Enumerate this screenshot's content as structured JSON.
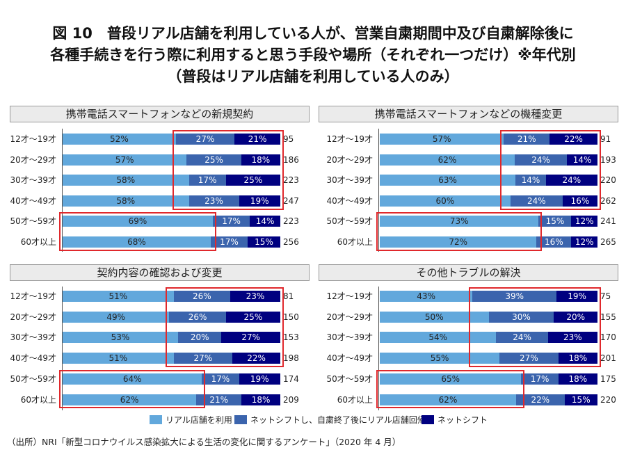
{
  "title": {
    "lines": [
      "図 10　普段リアル店舗を利用している人が、営業自粛期間中及び自粛解除後に",
      "各種手続きを行う際に利用すると思う手段や場所（それぞれ一つだけ）※年代別",
      "（普段はリアル店舗を利用している人のみ）"
    ]
  },
  "colors": {
    "real_store": "#62a8dc",
    "net_shift_return": "#3b64ad",
    "net_shift": "#000080",
    "highlight_box": "#e0282c",
    "header_bg": "#ebebeb"
  },
  "legend": [
    {
      "key": "real_store",
      "label": "リアル店舗を利用"
    },
    {
      "key": "net_shift_return",
      "label": "ネットシフトし、自粛終了後にリアル店舗回帰"
    },
    {
      "key": "net_shift",
      "label": "ネットシフト"
    }
  ],
  "source": "（出所）NRI「新型コロナウイルス感染拡大による生活の変化に関するアンケート」（2020 年 4 月）",
  "chart_data": [
    {
      "type": "bar",
      "orientation": "horizontal-stacked-100",
      "title": "携帯電話スマートフォンなどの新規契約",
      "categories": [
        "12才～19才",
        "20才～29才",
        "30才～39才",
        "40才～49才",
        "50才～59才",
        "60才以上"
      ],
      "series": [
        {
          "key": "real_store",
          "name": "リアル店舗を利用",
          "values": [
            52,
            57,
            58,
            58,
            69,
            68
          ]
        },
        {
          "key": "net_shift_return",
          "name": "ネットシフトし、自粛終了後にリアル店舗回帰",
          "values": [
            27,
            25,
            17,
            23,
            17,
            17
          ]
        },
        {
          "key": "net_shift",
          "name": "ネットシフト",
          "values": [
            21,
            18,
            25,
            19,
            14,
            15
          ]
        }
      ],
      "n": [
        95,
        186,
        223,
        247,
        223,
        256
      ],
      "unit": "%",
      "highlights": [
        {
          "rows": [
            0,
            3
          ],
          "series": [
            "net_shift_return",
            "net_shift"
          ]
        },
        {
          "rows": [
            4,
            5
          ],
          "series": [
            "real_store"
          ]
        }
      ]
    },
    {
      "type": "bar",
      "orientation": "horizontal-stacked-100",
      "title": "携帯電話スマートフォンなどの機種変更",
      "categories": [
        "12才～19才",
        "20才～29才",
        "30才～39才",
        "40才～49才",
        "50才～59才",
        "60才以上"
      ],
      "series": [
        {
          "key": "real_store",
          "name": "リアル店舗を利用",
          "values": [
            57,
            62,
            63,
            60,
            73,
            72
          ]
        },
        {
          "key": "net_shift_return",
          "name": "ネットシフトし、自粛終了後にリアル店舗回帰",
          "values": [
            21,
            24,
            14,
            24,
            15,
            16
          ]
        },
        {
          "key": "net_shift",
          "name": "ネットシフト",
          "values": [
            22,
            14,
            24,
            16,
            12,
            12
          ]
        }
      ],
      "n": [
        91,
        193,
        220,
        262,
        241,
        265
      ],
      "unit": "%",
      "highlights": [
        {
          "rows": [
            0,
            3
          ],
          "series": [
            "net_shift_return",
            "net_shift"
          ]
        },
        {
          "rows": [
            4,
            5
          ],
          "series": [
            "real_store"
          ]
        }
      ]
    },
    {
      "type": "bar",
      "orientation": "horizontal-stacked-100",
      "title": "契約内容の確認および変更",
      "categories": [
        "12才～19才",
        "20才～29才",
        "30才～39才",
        "40才～49才",
        "50才～59才",
        "60才以上"
      ],
      "series": [
        {
          "key": "real_store",
          "name": "リアル店舗を利用",
          "values": [
            51,
            49,
            53,
            51,
            64,
            62
          ]
        },
        {
          "key": "net_shift_return",
          "name": "ネットシフトし、自粛終了後にリアル店舗回帰",
          "values": [
            26,
            26,
            20,
            27,
            17,
            21
          ]
        },
        {
          "key": "net_shift",
          "name": "ネットシフト",
          "values": [
            23,
            25,
            27,
            22,
            19,
            18
          ]
        }
      ],
      "n": [
        81,
        150,
        153,
        198,
        174,
        209
      ],
      "unit": "%",
      "highlights": [
        {
          "rows": [
            0,
            3
          ],
          "series": [
            "net_shift_return",
            "net_shift"
          ]
        },
        {
          "rows": [
            4,
            5
          ],
          "series": [
            "real_store"
          ]
        }
      ]
    },
    {
      "type": "bar",
      "orientation": "horizontal-stacked-100",
      "title": "その他トラブルの解決",
      "categories": [
        "12才～19才",
        "20才～29才",
        "30才～39才",
        "40才～49才",
        "50才～59才",
        "60才以上"
      ],
      "series": [
        {
          "key": "real_store",
          "name": "リアル店舗を利用",
          "values": [
            43,
            50,
            54,
            55,
            65,
            62
          ]
        },
        {
          "key": "net_shift_return",
          "name": "ネットシフトし、自粛終了後にリアル店舗回帰",
          "values": [
            39,
            30,
            24,
            27,
            17,
            22
          ]
        },
        {
          "key": "net_shift",
          "name": "ネットシフト",
          "values": [
            19,
            20,
            23,
            18,
            18,
            15
          ]
        }
      ],
      "n": [
        75,
        155,
        170,
        201,
        175,
        220
      ],
      "unit": "%",
      "highlights": [
        {
          "rows": [
            0,
            3
          ],
          "series": [
            "net_shift_return",
            "net_shift"
          ]
        },
        {
          "rows": [
            4,
            5
          ],
          "series": [
            "real_store"
          ]
        }
      ]
    }
  ]
}
